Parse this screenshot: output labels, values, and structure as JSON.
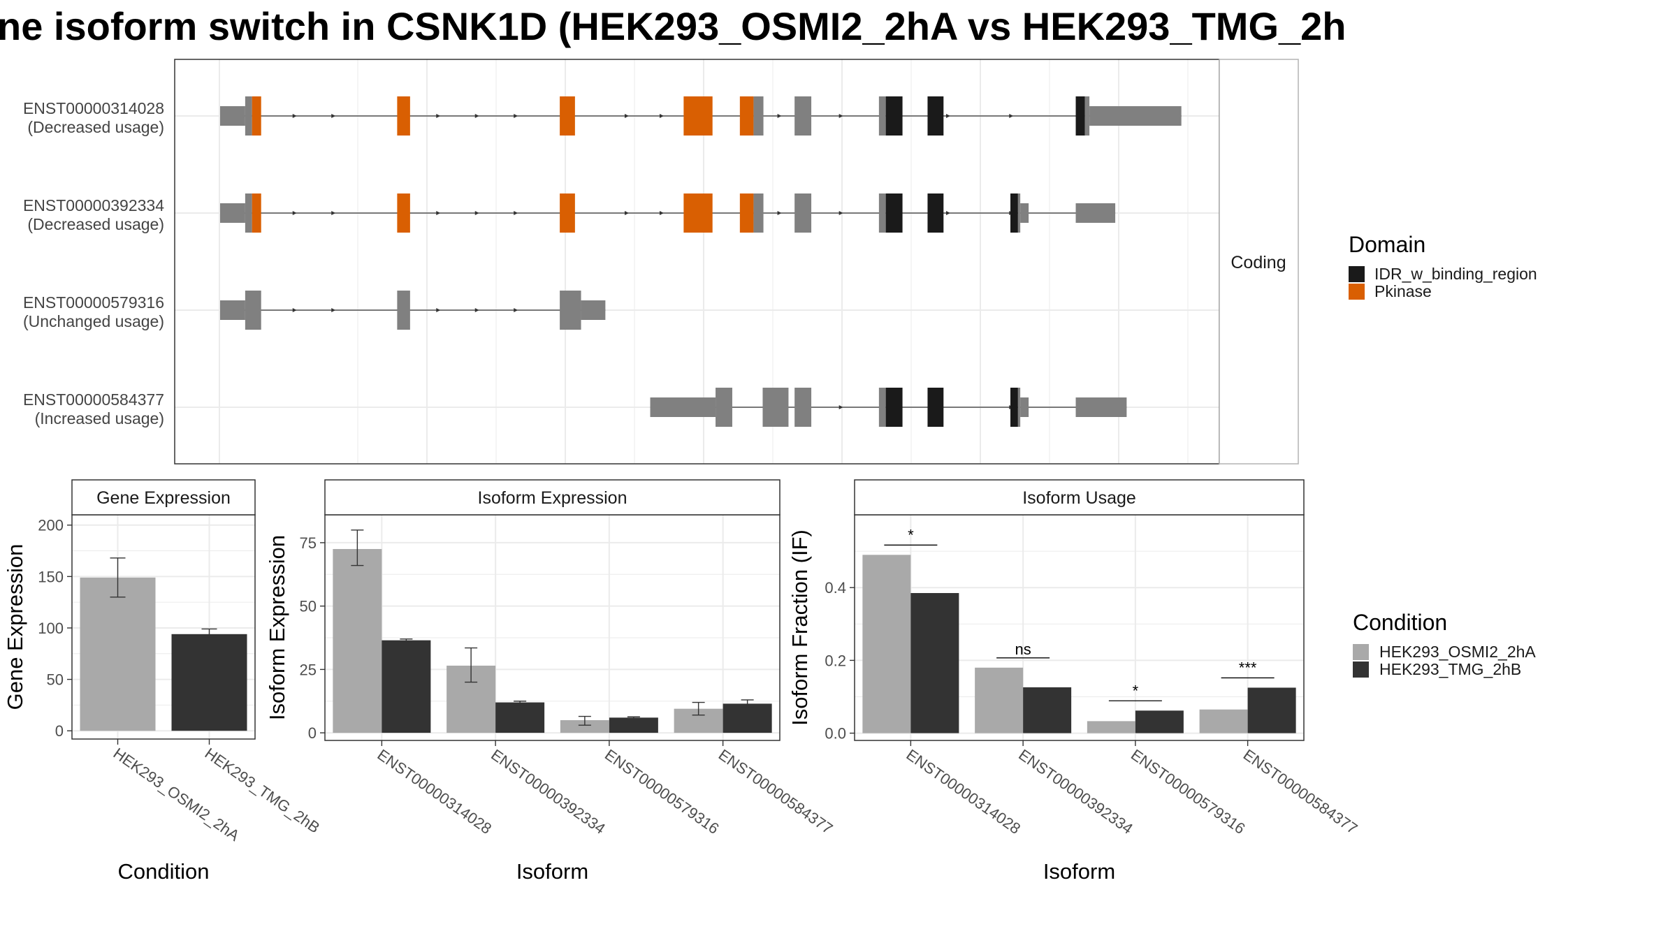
{
  "title": "ne isoform switch in CSNK1D (HEK293_OSMI2_2hA vs HEK293_TMG_2h",
  "colors": {
    "exon": "#808080",
    "IDR_w_binding_region": "#1a1a1a",
    "Pkinase": "#d95f02",
    "HEK293_OSMI2_2hA": "#a9a9a9",
    "HEK293_TMG_2hB": "#333333",
    "grid": "#ebebeb",
    "strip": "#ffffff",
    "border": "#333333"
  },
  "chart_data": [
    {
      "type": "gene_structure",
      "facet_label": "Coding",
      "transcripts": [
        {
          "id": "ENST00000314028",
          "usage": "(Decreased usage)",
          "segments": [
            {
              "s": 0,
              "e": 33,
              "h": "utr",
              "d": "none"
            },
            {
              "s": 33,
              "e": 42,
              "h": "cds",
              "d": "none"
            },
            {
              "s": 42,
              "e": 54,
              "h": "cds",
              "d": "Pkinase"
            },
            {
              "s": 233,
              "e": 250,
              "h": "cds",
              "d": "Pkinase"
            },
            {
              "s": 447,
              "e": 467,
              "h": "cds",
              "d": "Pkinase"
            },
            {
              "s": 610,
              "e": 648,
              "h": "cds",
              "d": "Pkinase"
            },
            {
              "s": 684,
              "e": 702,
              "h": "cds",
              "d": "Pkinase"
            },
            {
              "s": 702,
              "e": 715,
              "h": "cds",
              "d": "none"
            },
            {
              "s": 756,
              "e": 778,
              "h": "cds",
              "d": "none"
            },
            {
              "s": 867,
              "e": 876,
              "h": "cds",
              "d": "none"
            },
            {
              "s": 876,
              "e": 898,
              "h": "cds",
              "d": "IDR_w_binding_region"
            },
            {
              "s": 931,
              "e": 952,
              "h": "cds",
              "d": "IDR_w_binding_region"
            },
            {
              "s": 1126,
              "e": 1138,
              "h": "cds",
              "d": "IDR_w_binding_region"
            },
            {
              "s": 1138,
              "e": 1144,
              "h": "cds",
              "d": "none"
            },
            {
              "s": 1144,
              "e": 1265,
              "h": "utr",
              "d": "none"
            }
          ],
          "arrows": [
            100,
            151,
            289,
            340,
            391,
            537,
            583,
            738,
            819,
            960,
            1043
          ]
        },
        {
          "id": "ENST00000392334",
          "usage": "(Decreased usage)",
          "segments": [
            {
              "s": 0,
              "e": 33,
              "h": "utr",
              "d": "none"
            },
            {
              "s": 33,
              "e": 42,
              "h": "cds",
              "d": "none"
            },
            {
              "s": 42,
              "e": 54,
              "h": "cds",
              "d": "Pkinase"
            },
            {
              "s": 233,
              "e": 250,
              "h": "cds",
              "d": "Pkinase"
            },
            {
              "s": 447,
              "e": 467,
              "h": "cds",
              "d": "Pkinase"
            },
            {
              "s": 610,
              "e": 648,
              "h": "cds",
              "d": "Pkinase"
            },
            {
              "s": 684,
              "e": 702,
              "h": "cds",
              "d": "Pkinase"
            },
            {
              "s": 702,
              "e": 715,
              "h": "cds",
              "d": "none"
            },
            {
              "s": 756,
              "e": 778,
              "h": "cds",
              "d": "none"
            },
            {
              "s": 867,
              "e": 876,
              "h": "cds",
              "d": "none"
            },
            {
              "s": 876,
              "e": 898,
              "h": "cds",
              "d": "IDR_w_binding_region"
            },
            {
              "s": 931,
              "e": 952,
              "h": "cds",
              "d": "IDR_w_binding_region"
            },
            {
              "s": 1040,
              "e": 1050,
              "h": "cds",
              "d": "IDR_w_binding_region"
            },
            {
              "s": 1050,
              "e": 1053,
              "h": "cds",
              "d": "none"
            },
            {
              "s": 1053,
              "e": 1064,
              "h": "utr",
              "d": "none"
            },
            {
              "s": 1126,
              "e": 1178,
              "h": "utr",
              "d": "none"
            }
          ],
          "arrows": [
            100,
            151,
            289,
            340,
            391,
            537,
            583,
            738,
            819,
            960,
            1043
          ]
        },
        {
          "id": "ENST00000579316",
          "usage": "(Unchanged usage)",
          "segments": [
            {
              "s": 0,
              "e": 33,
              "h": "utr",
              "d": "none"
            },
            {
              "s": 33,
              "e": 54,
              "h": "cds",
              "d": "none"
            },
            {
              "s": 233,
              "e": 250,
              "h": "cds",
              "d": "none"
            },
            {
              "s": 447,
              "e": 475,
              "h": "cds",
              "d": "none"
            },
            {
              "s": 475,
              "e": 507,
              "h": "utr",
              "d": "none"
            }
          ],
          "arrows": [
            100,
            151,
            289,
            340,
            391
          ]
        },
        {
          "id": "ENST00000584377",
          "usage": "(Increased usage)",
          "segments": [
            {
              "s": 566,
              "e": 652,
              "h": "utr",
              "d": "none"
            },
            {
              "s": 652,
              "e": 674,
              "h": "cds",
              "d": "none"
            },
            {
              "s": 714,
              "e": 748,
              "h": "cds",
              "d": "none"
            },
            {
              "s": 756,
              "e": 778,
              "h": "cds",
              "d": "none"
            },
            {
              "s": 867,
              "e": 876,
              "h": "cds",
              "d": "none"
            },
            {
              "s": 876,
              "e": 898,
              "h": "cds",
              "d": "IDR_w_binding_region"
            },
            {
              "s": 931,
              "e": 952,
              "h": "cds",
              "d": "IDR_w_binding_region"
            },
            {
              "s": 1040,
              "e": 1050,
              "h": "cds",
              "d": "IDR_w_binding_region"
            },
            {
              "s": 1050,
              "e": 1053,
              "h": "cds",
              "d": "none"
            },
            {
              "s": 1053,
              "e": 1064,
              "h": "utr",
              "d": "none"
            },
            {
              "s": 1126,
              "e": 1193,
              "h": "utr",
              "d": "none"
            }
          ],
          "arrows": [
            819,
            1043
          ]
        }
      ],
      "legend": {
        "title": "Domain",
        "items": [
          {
            "label": "IDR_w_binding_region",
            "color": "#1a1a1a"
          },
          {
            "label": "Pkinase",
            "color": "#d95f02"
          }
        ]
      }
    },
    {
      "type": "bar",
      "strip": "Gene Expression",
      "xlabel": "Condition",
      "ylabel": "Gene Expression",
      "categories": [
        "HEK293_OSMI2_2hA",
        "HEK293_TMG_2hB"
      ],
      "values": [
        149,
        94
      ],
      "error": [
        [
          130,
          168
        ],
        [
          91,
          99
        ]
      ],
      "ylim": [
        -8,
        210
      ],
      "yticks": [
        0,
        50,
        100,
        150,
        200
      ]
    },
    {
      "type": "bar",
      "strip": "Isoform Expression",
      "xlabel": "Isoform",
      "ylabel": "Isoform Expression",
      "categories": [
        "ENST00000314028",
        "ENST00000392334",
        "ENST00000579316",
        "ENST00000584377"
      ],
      "series": [
        {
          "name": "HEK293_OSMI2_2hA",
          "values": [
            72.5,
            26.5,
            5,
            9.5
          ],
          "error": [
            [
              66,
              80
            ],
            [
              20,
              33.5
            ],
            [
              3,
              6.5
            ],
            [
              7,
              12
            ]
          ]
        },
        {
          "name": "HEK293_TMG_2hB",
          "values": [
            36.5,
            12,
            6,
            11.5
          ],
          "error": [
            [
              36,
              37
            ],
            [
              11,
              12.5
            ],
            [
              5.5,
              6.3
            ],
            [
              10,
              13
            ]
          ]
        }
      ],
      "ylim": [
        -3,
        86
      ],
      "yticks": [
        0,
        25,
        50,
        75
      ]
    },
    {
      "type": "bar",
      "strip": "Isoform Usage",
      "xlabel": "Isoform",
      "ylabel": "Isoform Fraction (IF)",
      "categories": [
        "ENST00000314028",
        "ENST00000392334",
        "ENST00000579316",
        "ENST00000584377"
      ],
      "series": [
        {
          "name": "HEK293_OSMI2_2hA",
          "values": [
            0.49,
            0.18,
            0.033,
            0.065
          ]
        },
        {
          "name": "HEK293_TMG_2hB",
          "values": [
            0.385,
            0.126,
            0.062,
            0.125
          ]
        }
      ],
      "significance": [
        "*",
        "ns",
        "*",
        "***"
      ],
      "ylim": [
        -0.02,
        0.6
      ],
      "yticks": [
        0.0,
        0.2,
        0.4
      ],
      "ytick_labels": [
        "0.0",
        "0.2",
        "0.4"
      ]
    }
  ],
  "condition_legend": {
    "title": "Condition",
    "items": [
      {
        "label": "HEK293_OSMI2_2hA",
        "color": "#a9a9a9"
      },
      {
        "label": "HEK293_TMG_2hB",
        "color": "#333333"
      }
    ]
  }
}
